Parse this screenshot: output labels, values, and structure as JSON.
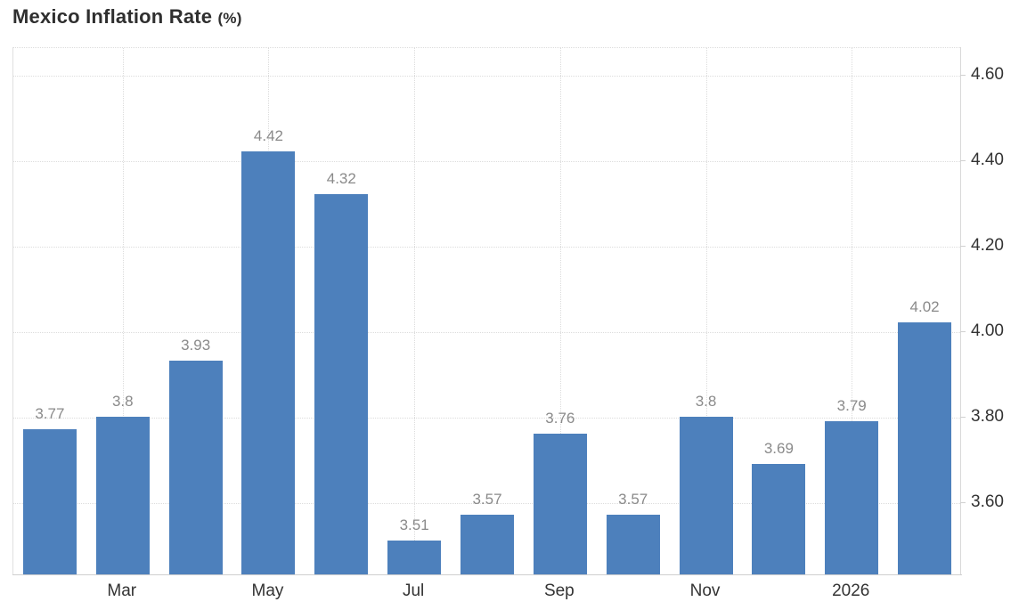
{
  "chart_data": {
    "type": "bar",
    "title": "Mexico Inflation Rate",
    "unit_label": "(%)",
    "values": [
      3.77,
      3.8,
      3.93,
      4.42,
      4.32,
      3.51,
      3.57,
      3.76,
      3.57,
      3.8,
      3.69,
      3.79,
      4.02
    ],
    "bar_labels": [
      "3.77",
      "3.8",
      "3.93",
      "4.42",
      "4.32",
      "3.51",
      "3.57",
      "3.76",
      "3.57",
      "3.8",
      "3.69",
      "3.79",
      "4.02"
    ],
    "x_ticks": [
      {
        "slot": 1,
        "label": "Mar"
      },
      {
        "slot": 3,
        "label": "May"
      },
      {
        "slot": 5,
        "label": "Jul"
      },
      {
        "slot": 7,
        "label": "Sep"
      },
      {
        "slot": 9,
        "label": "Nov"
      },
      {
        "slot": 11,
        "label": "2026"
      }
    ],
    "y_ticks": [
      {
        "value": 4.6,
        "label": "4.60"
      },
      {
        "value": 4.4,
        "label": "4.40"
      },
      {
        "value": 4.2,
        "label": "4.20"
      },
      {
        "value": 4.0,
        "label": "4.00"
      },
      {
        "value": 3.8,
        "label": "3.80"
      },
      {
        "value": 3.6,
        "label": "3.60"
      }
    ],
    "ylim": [
      3.431,
      4.664
    ],
    "grid": true,
    "legend": "none",
    "colors": {
      "bar": "#4d80bc",
      "bar_label": "#8a8a8a",
      "axis_label": "#333333",
      "title": "#2f2f2f",
      "grid": "#dcdcdc",
      "axis_line": "#d9d9d9"
    }
  }
}
